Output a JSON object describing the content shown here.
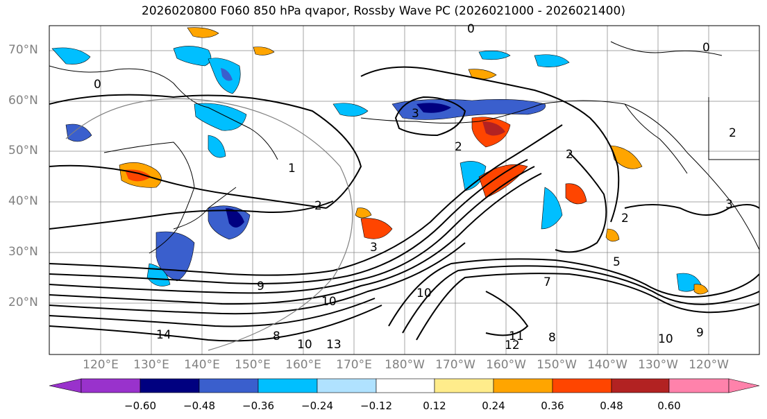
{
  "title": "2026020800 F060 850 hPa qvapor, Rossby Wave PC (2026021000 - 2026021400)",
  "map": {
    "lat_labels": [
      "70°N",
      "60°N",
      "50°N",
      "40°N",
      "30°N",
      "20°N"
    ],
    "lon_labels": [
      "120°E",
      "130°E",
      "140°E",
      "150°E",
      "160°E",
      "170°E",
      "180°W",
      "170°W",
      "160°W",
      "150°W",
      "140°W",
      "130°W",
      "120°W"
    ],
    "contour_labels": [
      "0",
      "0",
      "1",
      "2",
      "2",
      "2",
      "2",
      "3",
      "3",
      "5",
      "3",
      "9",
      "10",
      "10",
      "13",
      "14",
      "8",
      "10",
      "11",
      "12",
      "10",
      "9",
      "8",
      "0",
      "2",
      "7"
    ],
    "colors": {
      "land_outline": "#000000",
      "grid": "#808080",
      "contour": "#000000"
    }
  },
  "colorbar": {
    "bins": [
      "#9932cc",
      "#000080",
      "#3a5fcd",
      "#00bfff",
      "#b0e2ff",
      "#ffffff",
      "#ffec8b",
      "#ffa500",
      "#ff4500",
      "#b22222",
      "#ff82ab"
    ],
    "tick_labels": [
      "−0.60",
      "−0.48",
      "−0.36",
      "−0.24",
      "−0.12",
      "0.12",
      "0.24",
      "0.36",
      "0.48",
      "0.60"
    ]
  }
}
